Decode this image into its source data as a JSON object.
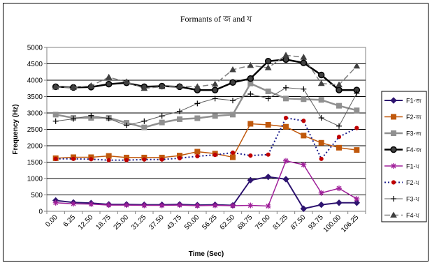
{
  "chart_data": {
    "type": "line",
    "title": "Formants of জ and য",
    "xlabel": "Time (Sec)",
    "ylabel": "Frequency (Hz)",
    "ylim": [
      0,
      5000
    ],
    "yticks": [
      0,
      500,
      1000,
      1500,
      2000,
      2500,
      3000,
      3500,
      4000,
      4500,
      5000
    ],
    "grid": "horizontal",
    "legend_position": "right",
    "x": [
      "0.00",
      "6.25",
      "12.50",
      "18.75",
      "25.00",
      "31.25",
      "37.50",
      "43.75",
      "50.00",
      "56.25",
      "62.50",
      "68.75",
      "75.00",
      "81.25",
      "87.50",
      "93.75",
      "100.00",
      "106.25"
    ],
    "series": [
      {
        "name": "F1-জ",
        "color": "#2e1470",
        "dash": "solid",
        "width": 2,
        "marker": "diamond",
        "values": [
          330,
          270,
          250,
          210,
          210,
          200,
          200,
          210,
          190,
          200,
          180,
          950,
          1050,
          980,
          80,
          200,
          260,
          260
        ]
      },
      {
        "name": "F2-জ",
        "color": "#c0580c",
        "dash": "solid",
        "width": 1.5,
        "marker": "square",
        "values": [
          1620,
          1650,
          1650,
          1690,
          1640,
          1640,
          1640,
          1700,
          1820,
          1760,
          1650,
          2670,
          2640,
          2580,
          2310,
          2090,
          1940,
          1870
        ]
      },
      {
        "name": "F3-জ",
        "color": "#909090",
        "dash": "solid",
        "width": 2.5,
        "marker": "square",
        "values": [
          2950,
          2850,
          2850,
          2850,
          2700,
          2560,
          2710,
          2810,
          2840,
          2910,
          2950,
          3900,
          3660,
          3440,
          3420,
          3400,
          3220,
          3080
        ]
      },
      {
        "name": "F4-জ",
        "color": "#000000",
        "dash": "solid",
        "width": 2.5,
        "marker": "circle",
        "values": [
          3800,
          3780,
          3790,
          3880,
          3920,
          3800,
          3820,
          3800,
          3700,
          3700,
          3930,
          4050,
          4580,
          4630,
          4530,
          4160,
          3700,
          3700
        ]
      },
      {
        "name": "F1-য",
        "color": "#a0209a",
        "dash": "solid",
        "width": 1.5,
        "marker": "star",
        "values": [
          260,
          230,
          220,
          190,
          190,
          180,
          180,
          190,
          170,
          180,
          170,
          180,
          160,
          1540,
          1420,
          560,
          700,
          380
        ]
      },
      {
        "name": "F2-য",
        "color": "#1a1c8c",
        "dash": "dotted",
        "width": 2,
        "marker": "dot",
        "values": [
          1600,
          1600,
          1590,
          1560,
          1560,
          1580,
          1580,
          1620,
          1680,
          1720,
          1790,
          1700,
          1730,
          2850,
          2760,
          1600,
          2270,
          2540
        ]
      },
      {
        "name": "F3-য",
        "color": "#606060",
        "dash": "solid",
        "width": 1,
        "marker": "plus",
        "values": [
          2750,
          2820,
          2920,
          2830,
          2620,
          2750,
          2910,
          3050,
          3290,
          3440,
          3380,
          3580,
          3440,
          3770,
          3730,
          2850,
          2600,
          3600
        ]
      },
      {
        "name": "F4-য",
        "color": "#7f7f7f",
        "dash": "dashed",
        "width": 1.5,
        "marker": "triangle",
        "values": [
          3790,
          3780,
          3830,
          4090,
          3950,
          3750,
          3800,
          3820,
          3800,
          3880,
          4320,
          4450,
          4380,
          4760,
          4700,
          3900,
          3860,
          4430
        ]
      }
    ]
  }
}
